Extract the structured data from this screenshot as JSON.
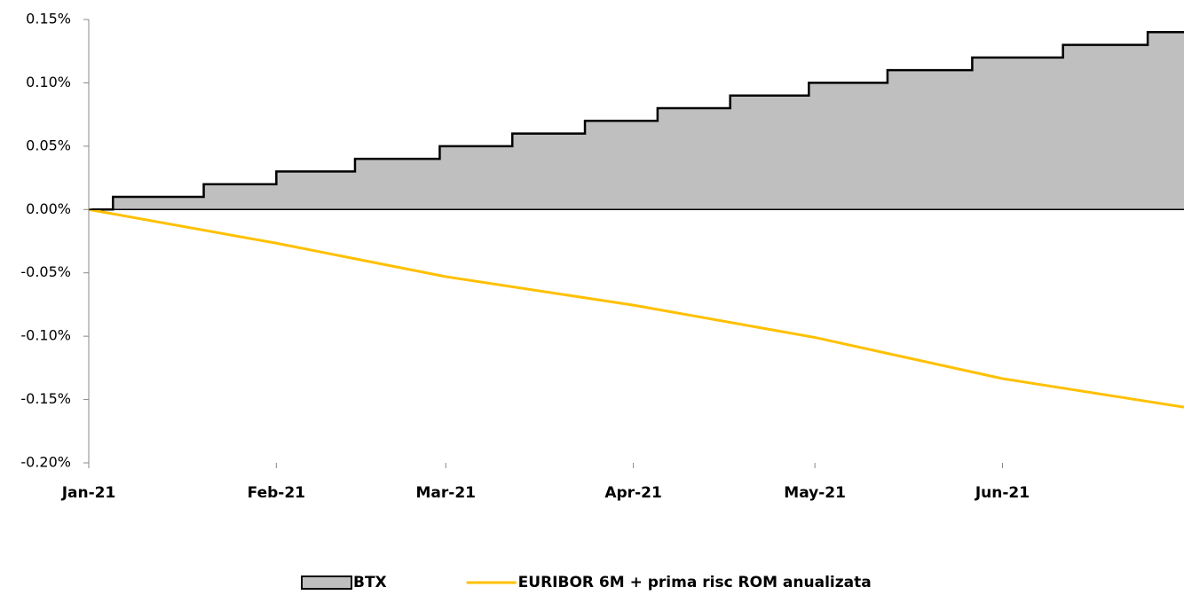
{
  "chart_data": {
    "type": "line",
    "xlim": [
      0,
      181
    ],
    "xticks": [
      {
        "value": 0,
        "label": "Jan-21"
      },
      {
        "value": 31,
        "label": "Feb-21"
      },
      {
        "value": 59,
        "label": "Mar-21"
      },
      {
        "value": 90,
        "label": "Apr-21"
      },
      {
        "value": 120,
        "label": "May-21"
      },
      {
        "value": 151,
        "label": "Jun-21"
      }
    ],
    "ylim": [
      -0.2,
      0.15
    ],
    "yticks": [
      {
        "value": -0.2,
        "label": "-0.20%"
      },
      {
        "value": -0.15,
        "label": "-0.15%"
      },
      {
        "value": -0.1,
        "label": "-0.10%"
      },
      {
        "value": -0.05,
        "label": "-0.05%"
      },
      {
        "value": 0,
        "label": "0.00%"
      },
      {
        "value": 0.05,
        "label": "0.05%"
      },
      {
        "value": 0.1,
        "label": "0.10%"
      },
      {
        "value": 0.15,
        "label": "0.15%"
      }
    ],
    "negative_tick_color": "#ff0000",
    "legend": "bottom",
    "series": [
      {
        "name": "BTX",
        "type": "area",
        "step": true,
        "color": "#bfbfbf",
        "edge_color": "#000000",
        "x": [
          0,
          4,
          19,
          31,
          44,
          58,
          70,
          82,
          94,
          106,
          119,
          132,
          146,
          161,
          175,
          181
        ],
        "values": [
          0,
          0.01,
          0.02,
          0.03,
          0.04,
          0.05,
          0.06,
          0.07,
          0.08,
          0.09,
          0.1,
          0.11,
          0.12,
          0.13,
          0.14,
          0.14
        ]
      },
      {
        "name": "EURIBOR 6M + prima risc ROM anualizata",
        "type": "line",
        "color": "#ffc000",
        "x": [
          0,
          31,
          59,
          90,
          120,
          151,
          181
        ],
        "values": [
          0,
          -0.0266,
          -0.053,
          -0.0755,
          -0.101,
          -0.1335,
          -0.156
        ]
      }
    ]
  }
}
